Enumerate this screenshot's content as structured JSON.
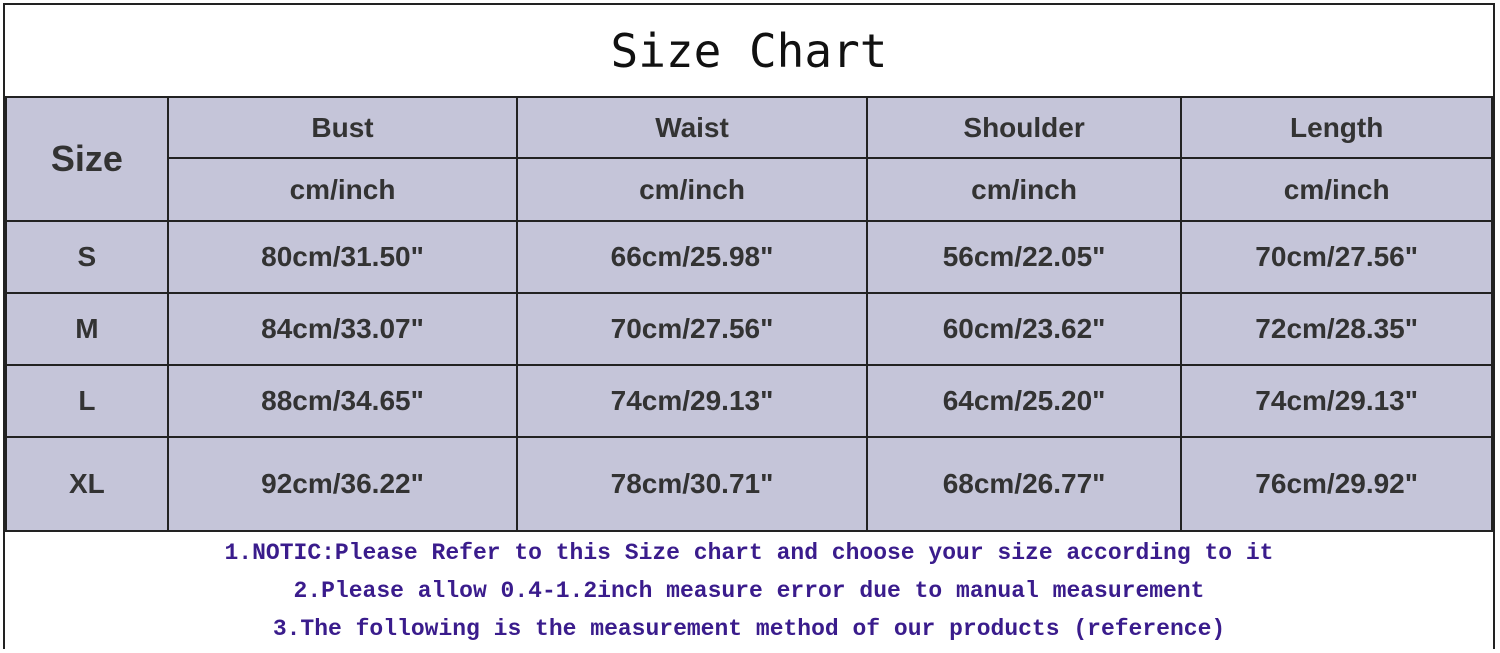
{
  "title": "Size Chart",
  "header": {
    "size_label": "Size",
    "columns": [
      "Bust",
      "Waist",
      "Shoulder",
      "Length"
    ],
    "unit": "cm/inch"
  },
  "rows": [
    {
      "size": "S",
      "values": [
        "80cm/31.50\"",
        "66cm/25.98\"",
        "56cm/22.05\"",
        "70cm/27.56\""
      ]
    },
    {
      "size": "M",
      "values": [
        "84cm/33.07\"",
        "70cm/27.56\"",
        "60cm/23.62\"",
        "72cm/28.35\""
      ]
    },
    {
      "size": "L",
      "values": [
        "88cm/34.65\"",
        "74cm/29.13\"",
        "64cm/25.20\"",
        "74cm/29.13\""
      ]
    },
    {
      "size": "XL",
      "values": [
        "92cm/36.22\"",
        "78cm/30.71\"",
        "68cm/26.77\"",
        "76cm/29.92\""
      ]
    }
  ],
  "notes": [
    "1.NOTIC:Please Refer to this Size chart and choose your size according to it",
    "2.Please allow 0.4-1.2inch measure error due to manual measurement",
    "3.The following is the measurement method of our products (reference)"
  ],
  "colors": {
    "cell_background": "#c5c5d9",
    "note_text": "#3a1c8c"
  }
}
